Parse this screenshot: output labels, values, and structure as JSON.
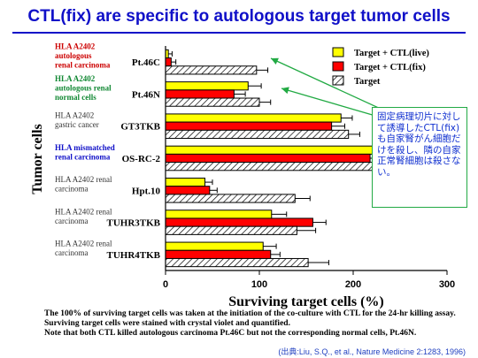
{
  "slide": {
    "title": "CTL(fix) are specific to autologous target tumor cells",
    "footnotes": [
      "The 100% of surviving target cells was taken at the initiation of the co-culture with CTL for the 24-hr killing assay.",
      "Surviving target cells were stained with crystal violet and quantified.",
      "Note that both CTL killed autologous carcinoma Pt.46C but not the corresponding normal cells, Pt.46N."
    ],
    "citation": "(出典:Liu, S.Q., et al., Nature Medicine 2:1283, 1996)",
    "callout": "固定病理切片に対して誘導したCTL(fix)も自家腎がん細胞だけを殺し、隣の自家正常腎細胞は殺さない。"
  },
  "chart_data": {
    "type": "bar",
    "orientation": "horizontal",
    "title": "",
    "xlabel": "Surviving target cells (%)",
    "ylabel": "Tumor cells",
    "xlim": [
      0,
      300
    ],
    "xticks": [
      0,
      100,
      200,
      300
    ],
    "grid": false,
    "legend_position": "top-right",
    "categories": [
      "Pt.46C",
      "Pt.46N",
      "GT3TKB",
      "OS-RC-2",
      "Hpt.10",
      "TUHR3TKB",
      "TUHR4TKB"
    ],
    "category_descriptions": [
      {
        "lines": [
          "HLA A2402",
          "autologous",
          "renal carcinoma"
        ],
        "color": "#cc0000"
      },
      {
        "lines": [
          "HLA A2402",
          "autologous renal",
          "normal cells"
        ],
        "color": "#118833"
      },
      {
        "lines": [
          "HLA A2402",
          "gastric cancer"
        ],
        "color": "#333333"
      },
      {
        "lines": [
          "HLA mismatched",
          "renal carcinoma"
        ],
        "color": "#1010c8"
      },
      {
        "lines": [
          "HLA A2402 renal",
          "carcinoma"
        ],
        "color": "#333333"
      },
      {
        "lines": [
          "HLA A2402 renal",
          "carcinoma"
        ],
        "color": "#333333"
      },
      {
        "lines": [
          "HLA A2402 renal",
          "carcinoma"
        ],
        "color": "#333333"
      }
    ],
    "series": [
      {
        "name": "Target + CTL(live)",
        "color": "#ffff00",
        "pattern": "solid",
        "values": [
          3,
          88,
          187,
          228,
          42,
          113,
          104
        ],
        "errors": [
          4,
          14,
          12,
          10,
          8,
          16,
          14
        ]
      },
      {
        "name": "Target + CTL(fix)",
        "color": "#ff0000",
        "pattern": "solid",
        "values": [
          6,
          73,
          177,
          218,
          47,
          157,
          112
        ],
        "errors": [
          5,
          12,
          14,
          10,
          8,
          14,
          10
        ]
      },
      {
        "name": "Target",
        "color": "#ffffff",
        "pattern": "hatch",
        "values": [
          97,
          100,
          195,
          235,
          138,
          140,
          152
        ],
        "errors": [
          12,
          12,
          12,
          8,
          16,
          20,
          22
        ]
      }
    ]
  }
}
